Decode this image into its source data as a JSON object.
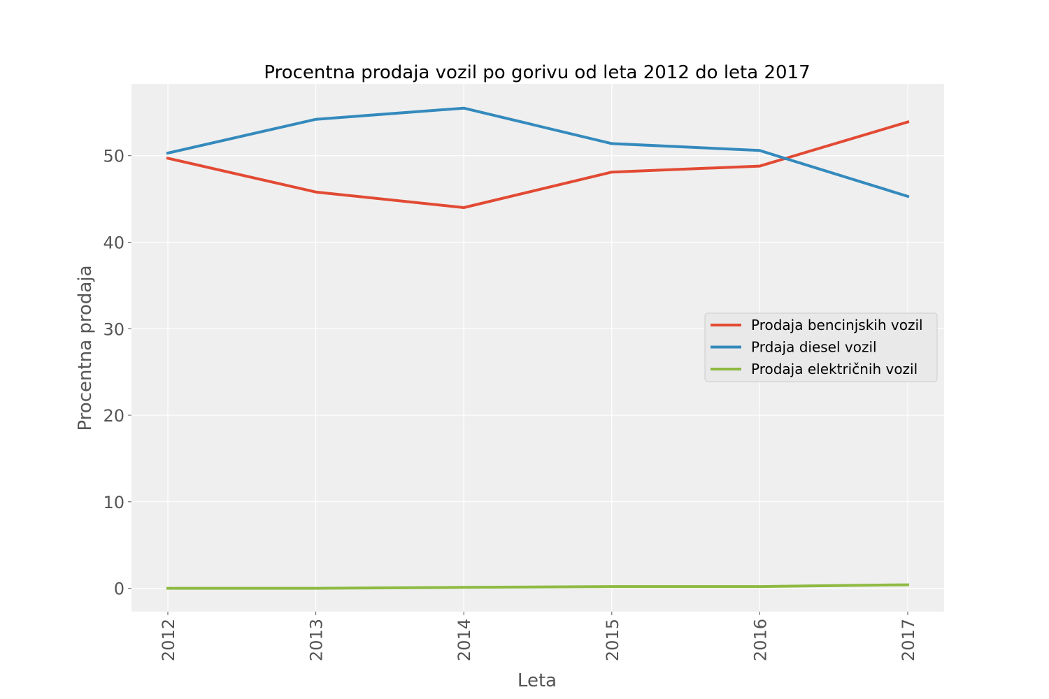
{
  "chart_data": {
    "type": "line",
    "title": "Procentna prodaja  vozil po gorivu od leta 2012 do leta 2017",
    "xlabel": "Leta",
    "ylabel": "Procentna prodaja",
    "categories": [
      "2012",
      "2013",
      "2014",
      "2015",
      "2016",
      "2017"
    ],
    "yticks": [
      "0",
      "10",
      "20",
      "30",
      "40",
      "50"
    ],
    "ylim": [
      -2.7,
      58.3
    ],
    "grid": true,
    "legend_position": "center-right",
    "series": [
      {
        "name": "Prodaja bencinjskih vozil",
        "color": "#E24A33",
        "values": [
          49.7,
          45.8,
          44.0,
          48.1,
          48.8,
          53.9
        ]
      },
      {
        "name": "Prdaja diesel vozil",
        "color": "#348ABD",
        "values": [
          50.3,
          54.2,
          55.5,
          51.4,
          50.6,
          45.3
        ]
      },
      {
        "name": "Prodaja električnih vozil",
        "color": "#8EBA42",
        "values": [
          0.0,
          0.0,
          0.1,
          0.2,
          0.2,
          0.4
        ]
      }
    ]
  }
}
